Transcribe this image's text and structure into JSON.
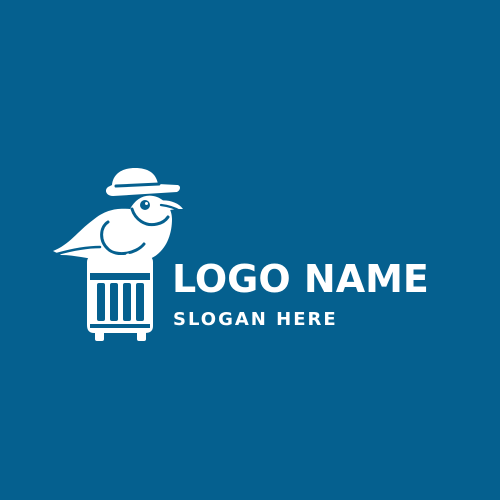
{
  "brand": {
    "name": "LOGO NAME",
    "slogan": "SLOGAN HERE"
  },
  "icon": {
    "name": "seagull-on-suitcase-icon"
  },
  "colors": {
    "background": "#05608f",
    "foreground": "#ffffff"
  }
}
